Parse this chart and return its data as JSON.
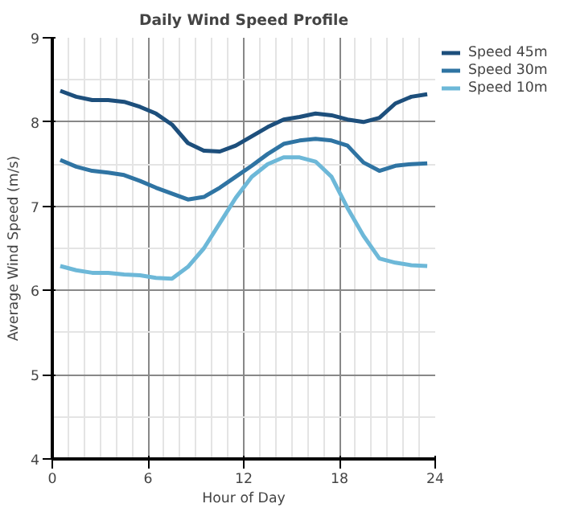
{
  "chart_data": {
    "type": "line",
    "title": "Daily Wind Speed Profile",
    "xlabel": "Hour of Day",
    "ylabel": "Average Wind Speed (m/s)",
    "x": [
      0.5,
      1.5,
      2.5,
      3.5,
      4.5,
      5.5,
      6.5,
      7.5,
      8.5,
      9.5,
      10.5,
      11.5,
      12.5,
      13.5,
      14.5,
      15.5,
      16.5,
      17.5,
      18.5,
      19.5,
      20.5,
      21.5,
      22.5,
      23.5
    ],
    "series": [
      {
        "name": "Speed 45m",
        "color": "#1d4f7c",
        "values": [
          8.37,
          8.3,
          8.26,
          8.26,
          8.24,
          8.18,
          8.1,
          7.97,
          7.75,
          7.66,
          7.65,
          7.72,
          7.83,
          7.94,
          8.03,
          8.06,
          8.1,
          8.08,
          8.03,
          8.0,
          8.05,
          8.22,
          8.3,
          8.33
        ]
      },
      {
        "name": "Speed 30m",
        "color": "#2f74a3",
        "values": [
          7.55,
          7.47,
          7.42,
          7.4,
          7.37,
          7.3,
          7.22,
          7.15,
          7.08,
          7.11,
          7.22,
          7.35,
          7.48,
          7.62,
          7.74,
          7.78,
          7.8,
          7.78,
          7.72,
          7.52,
          7.42,
          7.48,
          7.5,
          7.51
        ]
      },
      {
        "name": "Speed 10m",
        "color": "#6db8d8",
        "values": [
          6.29,
          6.24,
          6.21,
          6.21,
          6.19,
          6.18,
          6.15,
          6.14,
          6.28,
          6.5,
          6.8,
          7.1,
          7.35,
          7.5,
          7.58,
          7.58,
          7.53,
          7.35,
          6.98,
          6.65,
          6.38,
          6.33,
          6.3,
          6.29
        ]
      }
    ],
    "xlim": [
      0,
      24
    ],
    "xticks": [
      0,
      6,
      12,
      18,
      24
    ],
    "ylim": [
      4,
      9
    ],
    "yticks": [
      4,
      5,
      6,
      7,
      8,
      9
    ],
    "grid": true,
    "legend": "top right",
    "marker": "none",
    "line_style": "solid"
  }
}
